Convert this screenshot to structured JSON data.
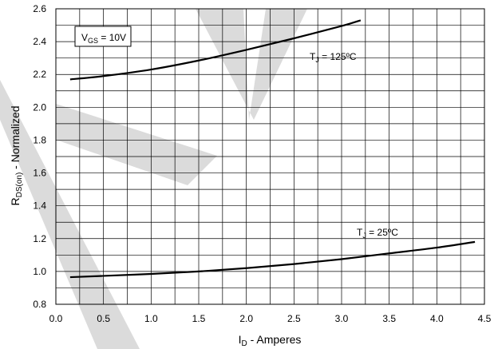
{
  "chart_data": {
    "type": "line",
    "xlabel": {
      "main": "I",
      "sub": "D",
      "rest": " - Amperes"
    },
    "ylabel": {
      "main": "R",
      "sub": "DS(on)",
      "rest": " - Normalized"
    },
    "xlim": [
      0,
      4.5
    ],
    "ylim": [
      0.8,
      2.6
    ],
    "x_ticks": [
      "0.0",
      "0.5",
      "1.0",
      "1.5",
      "2.0",
      "2.5",
      "3.0",
      "3.5",
      "4.0",
      "4.5"
    ],
    "y_ticks": [
      "0.8",
      "1.0",
      "1.2",
      "1.4",
      "1.6",
      "1.8",
      "2.0",
      "2.2",
      "2.4",
      "2.6"
    ],
    "grid": true,
    "minor_grid_x_step": 0.25,
    "minor_grid_y_step": 0.1,
    "legend_box": {
      "main": "V",
      "sub": "GS",
      "rest": " = 10V"
    },
    "series": [
      {
        "annotation": {
          "main": "T",
          "sub": "J",
          "rest": " = 125ºC"
        },
        "x": [
          0.15,
          0.5,
          1.0,
          1.5,
          2.0,
          2.5,
          3.0,
          3.2
        ],
        "y": [
          2.17,
          2.19,
          2.23,
          2.285,
          2.35,
          2.42,
          2.495,
          2.53
        ]
      },
      {
        "annotation": {
          "main": "T",
          "sub": "J",
          "rest": " = 25ºC"
        },
        "x": [
          0.15,
          0.5,
          1.0,
          1.5,
          2.0,
          2.5,
          3.0,
          3.5,
          4.0,
          4.4
        ],
        "y": [
          0.965,
          0.973,
          0.985,
          1.0,
          1.02,
          1.045,
          1.075,
          1.11,
          1.145,
          1.18
        ]
      }
    ],
    "line_color": "#000000",
    "watermark_color": "#cfcfcf"
  }
}
